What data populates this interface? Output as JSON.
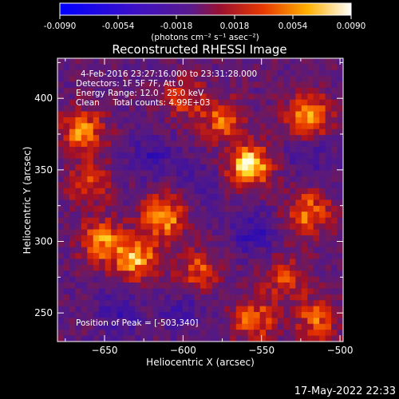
{
  "colorbar": {
    "ticks": [
      "-0.0090",
      "-0.0054",
      "-0.0018",
      "0.0018",
      "0.0054",
      "0.0090"
    ],
    "units": "(photons cm⁻² s⁻¹ asec⁻²)",
    "range": [
      -0.009,
      0.009
    ]
  },
  "chart_data": {
    "type": "heatmap",
    "title": "Reconstructed RHESSI Image",
    "xlabel": "Heliocentric X (arcsec)",
    "ylabel": "Heliocentric Y (arcsec)",
    "xlim": [
      -680,
      -498
    ],
    "ylim": [
      230,
      428
    ],
    "x_ticks": [
      -650,
      -600,
      -550,
      -500
    ],
    "y_ticks": [
      250,
      300,
      350,
      400
    ],
    "grid": 48,
    "colormap": "blue-purple-red-yellow-white",
    "annotations": [
      "4-Feb-2016 23:27:16.000 to 23:31:28.000",
      "Detectors: 1F 5F 7F, Att 0",
      "Energy Range: 12.0 - 25.0 keV",
      "Clean     Total counts: 4.99E+03"
    ],
    "peak_label": "Position of Peak = [-503,340]",
    "peak": [
      -503,
      340
    ],
    "hot_spots": [
      {
        "x": -558,
        "y": 353,
        "intensity": 1.0
      },
      {
        "x": -520,
        "y": 388,
        "intensity": 0.85
      },
      {
        "x": -612,
        "y": 318,
        "intensity": 0.8
      },
      {
        "x": -630,
        "y": 288,
        "intensity": 0.8
      },
      {
        "x": -664,
        "y": 377,
        "intensity": 0.75
      },
      {
        "x": -652,
        "y": 300,
        "intensity": 0.7
      },
      {
        "x": -575,
        "y": 385,
        "intensity": 0.6
      },
      {
        "x": -590,
        "y": 280,
        "intensity": 0.55
      },
      {
        "x": -520,
        "y": 320,
        "intensity": 0.7
      },
      {
        "x": -555,
        "y": 245,
        "intensity": 0.65
      },
      {
        "x": -515,
        "y": 245,
        "intensity": 0.6
      },
      {
        "x": -660,
        "y": 340,
        "intensity": 0.5
      },
      {
        "x": -600,
        "y": 400,
        "intensity": 0.5
      },
      {
        "x": -535,
        "y": 275,
        "intensity": 0.5
      }
    ],
    "cold_spots": [
      {
        "x": -620,
        "y": 360,
        "intensity": 0.6
      },
      {
        "x": -555,
        "y": 305,
        "intensity": 0.7
      },
      {
        "x": -640,
        "y": 250,
        "intensity": 0.6
      },
      {
        "x": -520,
        "y": 360,
        "intensity": 0.5
      },
      {
        "x": -600,
        "y": 250,
        "intensity": 0.5
      },
      {
        "x": -590,
        "y": 340,
        "intensity": 0.5
      }
    ]
  },
  "timestamp": "17-May-2022 22:33"
}
